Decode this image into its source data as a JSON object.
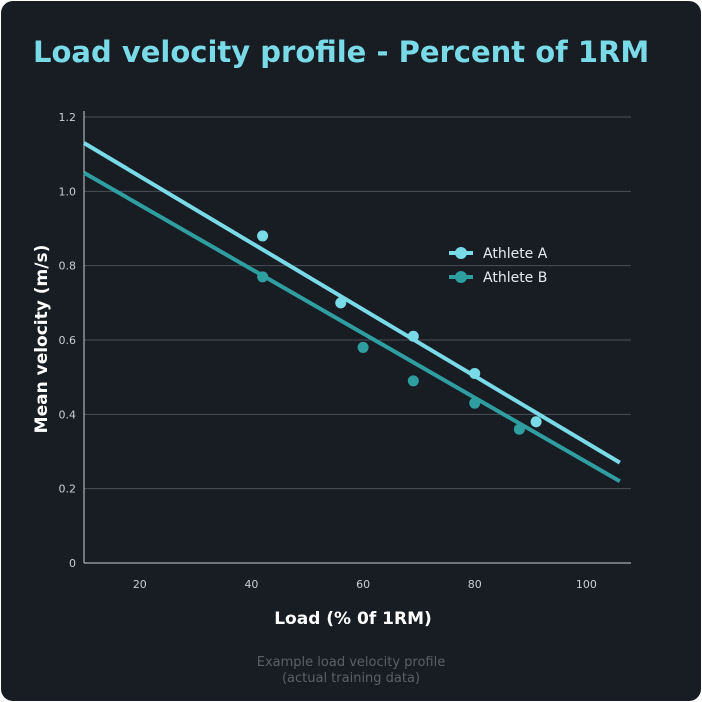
{
  "colors": {
    "background": "#181c23",
    "title": "#7adbe8",
    "grid": "#4a4f57",
    "axis": "#c9ced6",
    "athlete_a": "#7adbe8",
    "athlete_b": "#2f9ea0",
    "caption": "#5b6068"
  },
  "chart_data": {
    "type": "scatter",
    "title": "Load velocity profile - Percent of 1RM",
    "xlabel": "Load (% 0f 1RM)",
    "ylabel": "Mean velocity (m/s)",
    "xlim": [
      10,
      108
    ],
    "ylim": [
      0,
      1.2
    ],
    "x_ticks": [
      "20",
      "40",
      "60",
      "80",
      "100"
    ],
    "x_tick_values": [
      20,
      40,
      60,
      80,
      100
    ],
    "y_ticks": [
      "0",
      "0.2",
      "0.4",
      "0.6",
      "0.8",
      "1.0",
      "1.2"
    ],
    "y_tick_values": [
      0,
      0.2,
      0.4,
      0.6,
      0.8,
      1.0,
      1.2
    ],
    "grid": "horizontal",
    "legend_position": "right",
    "series": [
      {
        "name": "Athlete A",
        "points": [
          {
            "x": 42,
            "y": 0.88
          },
          {
            "x": 56,
            "y": 0.7
          },
          {
            "x": 69,
            "y": 0.61
          },
          {
            "x": 80,
            "y": 0.51
          },
          {
            "x": 91,
            "y": 0.38
          }
        ],
        "trendline": [
          {
            "x": 10,
            "y": 1.13
          },
          {
            "x": 106,
            "y": 0.27
          }
        ]
      },
      {
        "name": "Athlete B",
        "points": [
          {
            "x": 42,
            "y": 0.77
          },
          {
            "x": 60,
            "y": 0.58
          },
          {
            "x": 69,
            "y": 0.49
          },
          {
            "x": 80,
            "y": 0.43
          },
          {
            "x": 88,
            "y": 0.36
          }
        ],
        "trendline": [
          {
            "x": 10,
            "y": 1.05
          },
          {
            "x": 106,
            "y": 0.22
          }
        ]
      }
    ]
  },
  "caption": {
    "line1": "Example load velocity profile",
    "line2": "(actual training data)"
  }
}
